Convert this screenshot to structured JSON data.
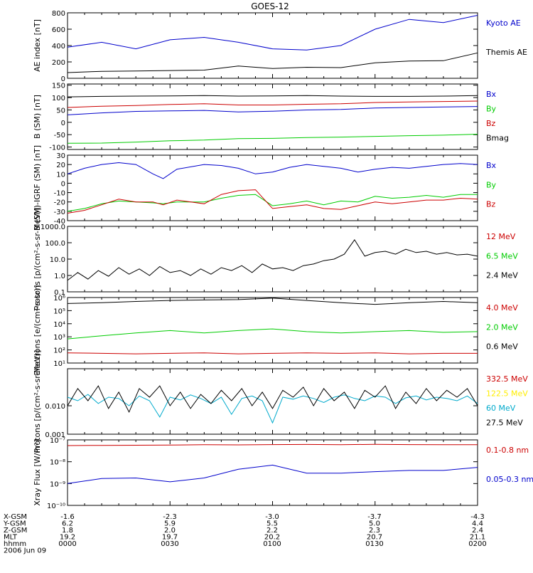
{
  "title": "GOES-12",
  "colors": {
    "black": "#000000",
    "blue": "#0000cc",
    "red": "#cc0000",
    "green": "#00cc00",
    "yellow": "#ffee00",
    "cyan": "#00aacc"
  },
  "footer": {
    "rows": [
      {
        "label": "X-GSM",
        "values": [
          "-1.6",
          "-2.3",
          "-3.0",
          "-3.7",
          "-4.3"
        ]
      },
      {
        "label": "Y-GSM",
        "values": [
          "6.2",
          "5.9",
          "5.5",
          "5.0",
          "4.4"
        ]
      },
      {
        "label": "Z-GSM",
        "values": [
          "1.8",
          "2.0",
          "2.2",
          "2.3",
          "2.4"
        ]
      },
      {
        "label": "MLT",
        "values": [
          "19.2",
          "19.7",
          "20.2",
          "20.7",
          "21.1"
        ]
      },
      {
        "label": "hhmm",
        "values": [
          "0000",
          "0030",
          "0100",
          "0130",
          "0200"
        ]
      }
    ],
    "date": "2006 Jun 09"
  },
  "chart_data": [
    {
      "type": "line",
      "ylabel": "AE index [nT]",
      "ylim": [
        0,
        800
      ],
      "yscale": "linear",
      "yticks": [
        0,
        200,
        400,
        600,
        800
      ],
      "ytick_labels": [
        "0",
        "200",
        "400",
        "600",
        "800"
      ],
      "x": [
        0,
        10,
        20,
        30,
        40,
        50,
        60,
        70,
        80,
        90,
        100,
        110,
        120
      ],
      "series": [
        {
          "name": "Kyoto AE",
          "color": "blue",
          "values": [
            380,
            440,
            360,
            470,
            500,
            440,
            360,
            345,
            400,
            600,
            720,
            680,
            770
          ]
        },
        {
          "name": "Themis AE",
          "color": "black",
          "values": [
            70,
            85,
            90,
            95,
            100,
            150,
            120,
            135,
            130,
            190,
            210,
            215,
            310
          ]
        }
      ]
    },
    {
      "type": "line",
      "ylabel": "B (SM) [nT]",
      "ylim": [
        -110,
        155
      ],
      "yscale": "linear",
      "yticks": [
        -100,
        -50,
        0,
        50,
        100,
        150
      ],
      "ytick_labels": [
        "-100",
        "-50",
        "0",
        "50",
        "100",
        "150"
      ],
      "x": [
        0,
        10,
        20,
        30,
        40,
        50,
        60,
        70,
        80,
        90,
        100,
        110,
        120
      ],
      "series": [
        {
          "name": "Bx",
          "color": "blue",
          "values": [
            30,
            38,
            44,
            46,
            48,
            42,
            45,
            50,
            52,
            58,
            60,
            62,
            64
          ]
        },
        {
          "name": "By",
          "color": "green",
          "values": [
            -85,
            -84,
            -80,
            -75,
            -72,
            -66,
            -65,
            -62,
            -60,
            -57,
            -54,
            -52,
            -48
          ]
        },
        {
          "name": "Bz",
          "color": "red",
          "values": [
            60,
            65,
            68,
            72,
            75,
            70,
            70,
            73,
            75,
            80,
            82,
            84,
            86
          ]
        },
        {
          "name": "Bmag",
          "color": "black",
          "values": [
            103,
            105,
            106,
            107,
            108,
            106,
            107,
            108,
            106,
            105,
            105,
            106,
            108
          ]
        }
      ]
    },
    {
      "type": "line",
      "ylabel": "B (SM)-IGRF (SM) [nT]",
      "ylim": [
        -40,
        30
      ],
      "yscale": "linear",
      "yticks": [
        -40,
        -30,
        -20,
        -10,
        0,
        10,
        20,
        30
      ],
      "ytick_labels": [
        "-40",
        "-30",
        "-20",
        "-10",
        "0",
        "10",
        "20",
        "30"
      ],
      "x": [
        0,
        5,
        10,
        15,
        20,
        25,
        28,
        32,
        40,
        45,
        50,
        55,
        60,
        65,
        70,
        75,
        80,
        85,
        90,
        95,
        100,
        105,
        110,
        115,
        120
      ],
      "series": [
        {
          "name": "Bx",
          "color": "blue",
          "values": [
            10,
            16,
            20,
            22,
            20,
            10,
            5,
            15,
            20,
            19,
            16,
            10,
            12,
            17,
            20,
            18,
            16,
            12,
            15,
            17,
            16,
            18,
            20,
            21,
            20
          ]
        },
        {
          "name": "By",
          "color": "green",
          "values": [
            -30,
            -27,
            -22,
            -19,
            -20,
            -21,
            -22,
            -20,
            -20,
            -16,
            -13,
            -12,
            -24,
            -22,
            -19,
            -23,
            -19,
            -20,
            -14,
            -16,
            -15,
            -13,
            -15,
            -12,
            -12
          ]
        },
        {
          "name": "Bz",
          "color": "red",
          "values": [
            -32,
            -29,
            -23,
            -17,
            -20,
            -20,
            -23,
            -18,
            -22,
            -12,
            -8,
            -7,
            -27,
            -25,
            -23,
            -27,
            -28,
            -24,
            -20,
            -22,
            -20,
            -18,
            -18,
            -16,
            -17
          ]
        }
      ]
    },
    {
      "type": "line",
      "ylabel": "Protons [p/(cm²-s-sr-MeV)]",
      "ylim": [
        0.1,
        1000
      ],
      "yscale": "log",
      "yticks": [
        0.1,
        1,
        10,
        100,
        1000
      ],
      "ytick_labels": [
        "0.1",
        "1.0",
        "10.0",
        "100.0",
        "1000.0"
      ],
      "x": [
        0,
        3,
        6,
        9,
        12,
        15,
        18,
        21,
        24,
        27,
        30,
        33,
        36,
        39,
        42,
        45,
        48,
        51,
        54,
        57,
        60,
        63,
        66,
        69,
        72,
        75,
        78,
        81,
        84,
        87,
        90,
        93,
        96,
        99,
        102,
        105,
        108,
        111,
        114,
        117,
        120
      ],
      "series": [
        {
          "name": "12 MeV",
          "color": "red",
          "values": [
            null,
            null,
            null,
            null,
            null,
            null,
            null,
            null,
            null,
            null,
            null,
            null,
            null,
            null,
            null,
            null,
            null,
            null,
            null,
            null,
            null,
            null,
            null,
            null,
            null,
            null,
            null,
            null,
            null,
            null,
            null,
            null,
            null,
            null,
            null,
            null,
            null,
            null,
            null,
            null,
            null
          ]
        },
        {
          "name": "6.5 MeV",
          "color": "green",
          "values": [
            null,
            null,
            null,
            null,
            null,
            null,
            null,
            null,
            null,
            null,
            null,
            null,
            null,
            null,
            null,
            null,
            null,
            null,
            null,
            null,
            null,
            null,
            null,
            null,
            null,
            null,
            null,
            null,
            null,
            null,
            null,
            null,
            null,
            null,
            null,
            null,
            null,
            null,
            null,
            null,
            null
          ]
        },
        {
          "name": "2.4 MeV",
          "color": "black",
          "values": [
            0.5,
            1.5,
            0.6,
            2.0,
            0.9,
            3.0,
            1.2,
            2.5,
            1.0,
            3.5,
            1.5,
            2.0,
            1.0,
            2.5,
            1.2,
            3.0,
            2.0,
            4.0,
            1.5,
            5.0,
            2.5,
            3.0,
            2.0,
            4.0,
            5.0,
            8.0,
            10,
            20,
            150,
            15,
            25,
            30,
            20,
            40,
            25,
            30,
            20,
            25,
            18,
            20,
            15
          ]
        }
      ]
    },
    {
      "type": "line",
      "ylabel": "Electrons [e/(cm²-s-sr)]",
      "ylim": [
        10,
        1000000
      ],
      "yscale": "log",
      "yticks": [
        10,
        100,
        1000,
        10000,
        100000,
        1000000
      ],
      "ytick_labels": [
        "10¹",
        "10²",
        "10³",
        "10⁴",
        "10⁵",
        "10⁶"
      ],
      "x": [
        0,
        10,
        20,
        30,
        40,
        50,
        60,
        70,
        80,
        90,
        100,
        110,
        120
      ],
      "series": [
        {
          "name": "4.0 MeV",
          "color": "red",
          "values": [
            60,
            55,
            50,
            55,
            60,
            50,
            55,
            60,
            55,
            60,
            50,
            55,
            55
          ]
        },
        {
          "name": "2.0 MeV",
          "color": "green",
          "values": [
            700,
            1200,
            2000,
            3000,
            2000,
            3000,
            4000,
            2500,
            2000,
            2500,
            3000,
            2200,
            2500
          ]
        },
        {
          "name": "0.6 MeV",
          "color": "black",
          "values": [
            350000,
            400000,
            500000,
            600000,
            650000,
            700000,
            900000,
            600000,
            400000,
            300000,
            400000,
            500000,
            400000
          ]
        }
      ]
    },
    {
      "type": "line",
      "ylabel": "Protons [p/(cm²-s-sr-MeV)]",
      "ylim": [
        0.001,
        0.2
      ],
      "yscale": "log",
      "yticks": [
        0.001,
        0.01
      ],
      "ytick_labels": [
        "0.001",
        "0.010"
      ],
      "x": [
        0,
        3,
        6,
        9,
        12,
        15,
        18,
        21,
        24,
        27,
        30,
        33,
        36,
        39,
        42,
        45,
        48,
        51,
        54,
        57,
        60,
        63,
        66,
        69,
        72,
        75,
        78,
        81,
        84,
        87,
        90,
        93,
        96,
        99,
        102,
        105,
        108,
        111,
        114,
        117,
        120
      ],
      "series": [
        {
          "name": "332.5 MeV",
          "color": "red",
          "values": [
            null,
            null,
            null,
            null,
            null,
            null,
            null,
            null,
            null,
            null,
            null,
            null,
            null,
            null,
            null,
            null,
            null,
            null,
            null,
            null,
            null,
            null,
            null,
            null,
            null,
            null,
            null,
            null,
            null,
            null,
            null,
            null,
            null,
            null,
            null,
            null,
            null,
            null,
            null,
            null,
            null
          ]
        },
        {
          "name": "122.5 MeV",
          "color": "yellow",
          "values": [
            null,
            null,
            null,
            null,
            null,
            null,
            null,
            null,
            null,
            null,
            null,
            null,
            null,
            null,
            null,
            null,
            null,
            null,
            null,
            null,
            null,
            null,
            null,
            null,
            null,
            null,
            null,
            null,
            null,
            null,
            null,
            null,
            null,
            null,
            null,
            null,
            null,
            null,
            null,
            null,
            null
          ]
        },
        {
          "name": "60 MeV",
          "color": "cyan",
          "values": [
            0.02,
            0.015,
            0.025,
            0.012,
            0.02,
            0.018,
            0.01,
            0.022,
            0.015,
            0.004,
            0.02,
            0.016,
            0.024,
            0.018,
            0.012,
            0.02,
            0.005,
            0.018,
            0.022,
            0.015,
            0.0025,
            0.02,
            0.017,
            0.022,
            0.018,
            0.013,
            0.02,
            0.024,
            0.018,
            0.015,
            0.022,
            0.02,
            0.012,
            0.019,
            0.022,
            0.016,
            0.02,
            0.018,
            0.015,
            0.022,
            0.012
          ]
        },
        {
          "name": "27.5 MeV",
          "color": "black",
          "values": [
            0.01,
            0.04,
            0.015,
            0.05,
            0.008,
            0.03,
            0.006,
            0.04,
            0.02,
            0.05,
            0.01,
            0.03,
            0.008,
            0.025,
            0.012,
            0.035,
            0.015,
            0.04,
            0.01,
            0.03,
            0.008,
            0.035,
            0.02,
            0.045,
            0.01,
            0.04,
            0.015,
            0.03,
            0.008,
            0.035,
            0.02,
            0.05,
            0.008,
            0.03,
            0.012,
            0.04,
            0.015,
            0.035,
            0.02,
            0.04,
            0.01
          ]
        }
      ]
    },
    {
      "type": "line",
      "ylabel": "Xray Flux [W/m²]",
      "ylim": [
        1e-10,
        1e-07
      ],
      "yscale": "log",
      "yticks": [
        1e-10,
        1e-09,
        1e-08,
        1e-07
      ],
      "ytick_labels": [
        "10⁻¹⁰",
        "10⁻⁹",
        "10⁻⁸",
        "10⁻⁷"
      ],
      "x": [
        0,
        10,
        20,
        30,
        40,
        50,
        60,
        70,
        80,
        90,
        100,
        110,
        120
      ],
      "series": [
        {
          "name": "0.1-0.8 nm",
          "color": "red",
          "values": [
            5.5e-08,
            5.6e-08,
            5.7e-08,
            5.8e-08,
            6e-08,
            5.9e-08,
            6.1e-08,
            6.2e-08,
            6e-08,
            6.3e-08,
            6.1e-08,
            6e-08,
            6e-08
          ]
        },
        {
          "name": "0.05-0.3 nm",
          "color": "blue",
          "values": [
            1e-09,
            1.7e-09,
            1.8e-09,
            1.2e-09,
            1.8e-09,
            4.5e-09,
            7e-09,
            3e-09,
            3e-09,
            3.5e-09,
            4e-09,
            4e-09,
            5.5e-09
          ]
        }
      ]
    }
  ]
}
